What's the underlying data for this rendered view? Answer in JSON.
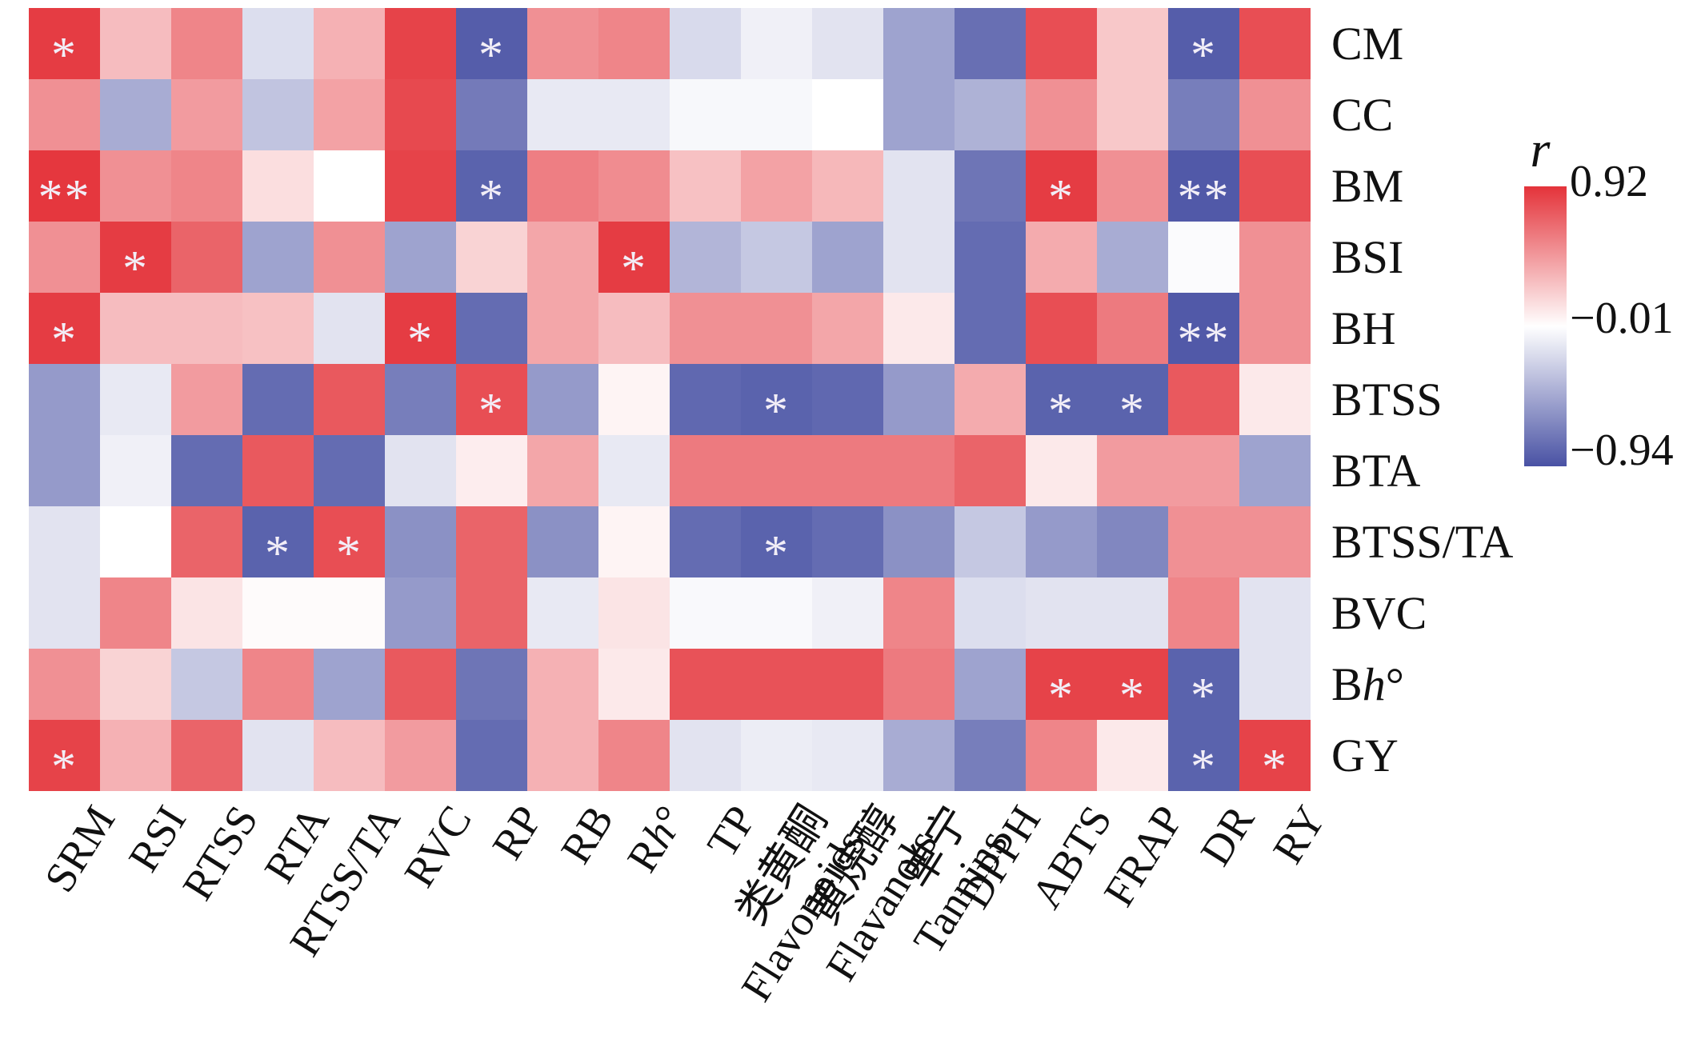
{
  "chart_data": {
    "type": "heatmap",
    "title": "",
    "xlabel": "",
    "ylabel": "",
    "grid": false,
    "legend_position": "right",
    "rows": [
      "CM",
      "CC",
      "BM",
      "BSI",
      "BH",
      "BTSS",
      "BTA",
      "BTSS/TA",
      "BVC",
      "Bh°",
      "GY"
    ],
    "columns": [
      "SRM",
      "RSI",
      "RTSS",
      "RTA",
      "RTSS/TA",
      "RVC",
      "RP",
      "RB",
      "Rh°",
      "TP",
      "类黄酮 Flavonoids",
      "黄烷醇 Flavanols",
      "单宁 Tannins",
      "DPPH",
      "ABTS",
      "FRAP",
      "DR",
      "RY"
    ],
    "column_label_lines": [
      [
        "SRM"
      ],
      [
        "RSI"
      ],
      [
        "RTSS"
      ],
      [
        "RTA"
      ],
      [
        "RTSS/TA"
      ],
      [
        "RVC"
      ],
      [
        "RP"
      ],
      [
        "RB"
      ],
      [
        "Rh°"
      ],
      [
        "TP"
      ],
      [
        "类黄酮",
        "Flavonoids"
      ],
      [
        "黄烷醇",
        "Flavanols"
      ],
      [
        "单宁",
        "Tannins"
      ],
      [
        "DPPH"
      ],
      [
        "ABTS"
      ],
      [
        "FRAP"
      ],
      [
        "DR"
      ],
      [
        "RY"
      ]
    ],
    "values": [
      [
        0.88,
        0.3,
        0.55,
        -0.18,
        0.35,
        0.85,
        -0.88,
        0.5,
        0.55,
        -0.2,
        -0.08,
        -0.15,
        -0.5,
        -0.78,
        0.8,
        0.25,
        -0.88,
        0.8
      ],
      [
        0.5,
        -0.45,
        0.45,
        -0.32,
        0.42,
        0.82,
        -0.72,
        -0.12,
        -0.12,
        -0.04,
        -0.04,
        0.0,
        -0.5,
        -0.42,
        0.5,
        0.25,
        -0.7,
        0.5
      ],
      [
        0.9,
        0.5,
        0.55,
        0.15,
        0.0,
        0.85,
        -0.85,
        0.58,
        0.52,
        0.28,
        0.42,
        0.32,
        -0.15,
        -0.75,
        0.88,
        0.5,
        -0.9,
        0.8
      ],
      [
        0.5,
        0.88,
        0.7,
        -0.5,
        0.5,
        -0.5,
        0.2,
        0.4,
        0.88,
        -0.4,
        -0.3,
        -0.5,
        -0.15,
        -0.8,
        0.38,
        -0.45,
        -0.02,
        0.5
      ],
      [
        0.88,
        0.3,
        0.3,
        0.28,
        -0.15,
        0.88,
        -0.8,
        0.4,
        0.3,
        0.5,
        0.5,
        0.4,
        0.1,
        -0.8,
        0.8,
        0.6,
        -0.9,
        0.5
      ],
      [
        -0.55,
        -0.12,
        0.45,
        -0.8,
        0.75,
        -0.7,
        0.8,
        -0.55,
        0.05,
        -0.82,
        -0.85,
        -0.82,
        -0.55,
        0.38,
        -0.85,
        -0.85,
        0.75,
        0.1
      ],
      [
        -0.55,
        -0.08,
        -0.8,
        0.75,
        -0.8,
        -0.15,
        0.08,
        0.4,
        -0.12,
        0.6,
        0.6,
        0.6,
        0.6,
        0.7,
        0.1,
        0.45,
        0.45,
        -0.5
      ],
      [
        -0.15,
        0.0,
        0.7,
        -0.85,
        0.8,
        -0.6,
        0.7,
        -0.6,
        0.05,
        -0.8,
        -0.85,
        -0.8,
        -0.6,
        -0.3,
        -0.55,
        -0.65,
        0.5,
        0.5
      ],
      [
        -0.15,
        0.55,
        0.12,
        0.02,
        0.02,
        -0.55,
        0.7,
        -0.12,
        0.12,
        -0.03,
        -0.03,
        -0.08,
        0.55,
        -0.18,
        -0.15,
        -0.15,
        0.55,
        -0.15
      ],
      [
        0.5,
        0.2,
        -0.3,
        0.55,
        -0.5,
        0.75,
        -0.75,
        0.35,
        0.1,
        0.78,
        0.78,
        0.78,
        0.6,
        -0.5,
        0.85,
        0.85,
        -0.85,
        -0.15
      ],
      [
        0.85,
        0.35,
        0.7,
        -0.15,
        0.3,
        0.45,
        -0.8,
        0.35,
        0.55,
        -0.15,
        -0.1,
        -0.12,
        -0.45,
        -0.7,
        0.55,
        0.1,
        -0.85,
        0.85
      ]
    ],
    "significance": [
      [
        "*",
        "",
        "",
        "",
        "",
        "",
        "*",
        "",
        "",
        "",
        "",
        "",
        "",
        "",
        "",
        "",
        "*",
        ""
      ],
      [
        "",
        "",
        "",
        "",
        "",
        "",
        "",
        "",
        "",
        "",
        "",
        "",
        "",
        "",
        "",
        "",
        "",
        ""
      ],
      [
        "**",
        "",
        "",
        "",
        "",
        "",
        "*",
        "",
        "",
        "",
        "",
        "",
        "",
        "",
        "*",
        "",
        "**",
        ""
      ],
      [
        "",
        "*",
        "",
        "",
        "",
        "",
        "",
        "",
        "*",
        "",
        "",
        "",
        "",
        "",
        "",
        "",
        "",
        ""
      ],
      [
        "*",
        "",
        "",
        "",
        "",
        "*",
        "",
        "",
        "",
        "",
        "",
        "",
        "",
        "",
        "",
        "",
        "**",
        ""
      ],
      [
        "",
        "",
        "",
        "",
        "",
        "",
        "*",
        "",
        "",
        "",
        "*",
        "",
        "",
        "",
        "*",
        "*",
        "",
        ""
      ],
      [
        "",
        "",
        "",
        "",
        "",
        "",
        "",
        "",
        "",
        "",
        "",
        "",
        "",
        "",
        "",
        "",
        "",
        ""
      ],
      [
        "",
        "",
        "",
        "*",
        "*",
        "",
        "",
        "",
        "",
        "",
        "*",
        "",
        "",
        "",
        "",
        "",
        "",
        ""
      ],
      [
        "",
        "",
        "",
        "",
        "",
        "",
        "",
        "",
        "",
        "",
        "",
        "",
        "",
        "",
        "",
        "",
        "",
        ""
      ],
      [
        "",
        "",
        "",
        "",
        "",
        "",
        "",
        "",
        "",
        "",
        "",
        "",
        "",
        "",
        "*",
        "*",
        "*",
        ""
      ],
      [
        "*",
        "",
        "",
        "",
        "",
        "",
        "",
        "",
        "",
        "",
        "",
        "",
        "",
        "",
        "",
        "",
        "*",
        "*"
      ]
    ],
    "legend": {
      "title": "r",
      "max_label": "0.92",
      "mid_label": "−0.01",
      "min_label": "−0.94",
      "max": 0.92,
      "mid": -0.01,
      "min": -0.94
    },
    "colors": {
      "positive_max": "#e4333a",
      "zero": "#ffffff",
      "negative_min": "#4952a4",
      "asterisk": "#f2eef7"
    }
  }
}
